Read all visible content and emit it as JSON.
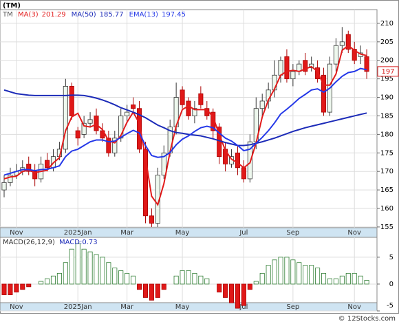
{
  "chart_data": [
    {
      "type": "candlestick",
      "title": "(TM)",
      "ticker": "TM",
      "categories": [
        null,
        null,
        "Nov",
        null,
        null,
        null,
        null,
        null,
        null,
        null,
        null,
        null,
        "2025Jan",
        null,
        null,
        null,
        null,
        null,
        null,
        null,
        "Mar",
        null,
        null,
        null,
        null,
        null,
        null,
        null,
        null,
        "May",
        null,
        null,
        null,
        null,
        null,
        null,
        null,
        null,
        null,
        "Jul",
        null,
        null,
        null,
        null,
        null,
        null,
        null,
        "Sep",
        null,
        null,
        null,
        null,
        null,
        null,
        null,
        null,
        null,
        "Nov",
        null,
        null
      ],
      "open": [
        165,
        167,
        169,
        170,
        172,
        170,
        168,
        173,
        171,
        174,
        176,
        193,
        181,
        180,
        183,
        185,
        181,
        179,
        175,
        179,
        185,
        188,
        187,
        176,
        158,
        156,
        169,
        175,
        182,
        192,
        189,
        185,
        191,
        187,
        186,
        182,
        176,
        172,
        175,
        171,
        168,
        178,
        187,
        189,
        192,
        196,
        201,
        195,
        197,
        200,
        198,
        198,
        196,
        186,
        199,
        204,
        207,
        203,
        201,
        201
      ],
      "high": [
        169,
        171,
        172,
        173,
        174,
        172,
        174,
        175,
        176,
        178,
        195,
        194,
        182,
        185,
        186,
        187,
        183,
        181,
        181,
        187,
        188,
        190,
        189,
        178,
        160,
        171,
        177,
        184,
        194,
        193,
        190,
        189,
        193,
        189,
        187,
        183,
        178,
        176,
        177,
        173,
        180,
        190,
        191,
        194,
        200,
        201,
        203,
        199,
        200,
        202,
        201,
        200,
        198,
        201,
        206,
        209,
        208,
        205,
        204,
        203
      ],
      "low": [
        163,
        166,
        168,
        169,
        169,
        166,
        167,
        170,
        170,
        173,
        175,
        184,
        177,
        179,
        182,
        180,
        178,
        174,
        174,
        178,
        183,
        186,
        175,
        156,
        155,
        155,
        168,
        174,
        180,
        187,
        184,
        183,
        187,
        184,
        179,
        172,
        170,
        171,
        169,
        167,
        167,
        176,
        185,
        187,
        190,
        194,
        194,
        193,
        196,
        196,
        197,
        194,
        185,
        185,
        197,
        202,
        202,
        199,
        199,
        195
      ],
      "close": [
        167,
        169,
        170,
        171,
        170,
        168,
        172,
        171,
        174,
        176,
        193,
        185,
        179,
        183,
        184,
        181,
        179,
        175,
        179,
        185,
        186,
        187,
        176,
        158,
        156,
        169,
        175,
        182,
        190,
        188,
        185,
        187,
        188,
        185,
        181,
        174,
        172,
        174,
        171,
        168,
        178,
        187,
        189,
        192,
        196,
        200,
        195,
        197,
        199,
        197,
        199,
        195,
        186,
        199,
        204,
        205,
        203,
        200,
        202,
        197
      ],
      "series": [
        {
          "name": "MA(3)",
          "color": "#e21b1b",
          "legend_value": 201.29,
          "values": [
            168,
            168.5,
            168.7,
            170,
            170.3,
            169.7,
            170,
            170.3,
            172.3,
            173.7,
            181,
            184.7,
            185.7,
            182.3,
            182,
            182.7,
            181.3,
            178.3,
            177.7,
            179.7,
            183.3,
            186,
            183,
            173.7,
            163.3,
            161,
            166.7,
            175.3,
            182.3,
            186.7,
            187.7,
            186.7,
            186.7,
            186.7,
            184.7,
            180,
            175.7,
            173.3,
            172.3,
            171,
            172.3,
            177.7,
            184.7,
            189.3,
            192.3,
            196,
            197,
            197.3,
            197,
            197.7,
            198.3,
            197,
            193.3,
            193.3,
            196.3,
            202.7,
            204,
            202.7,
            201.7,
            201.29
          ]
        },
        {
          "name": "MA(50)",
          "color": "#1c2bb8",
          "legend_value": 185.77,
          "values": [
            192,
            191.5,
            191,
            190.8,
            190.6,
            190.5,
            190.5,
            190.5,
            190.5,
            190.5,
            190.5,
            190.6,
            190.6,
            190.5,
            190.2,
            189.8,
            189.3,
            188.7,
            188,
            187.2,
            186.6,
            186,
            185.3,
            184.5,
            183.5,
            182.5,
            181.8,
            181,
            180.5,
            180.3,
            180,
            179.8,
            179.6,
            179.2,
            178.8,
            178.3,
            177.8,
            177.4,
            177,
            177,
            177.2,
            177.6,
            178,
            178.5,
            179,
            179.6,
            180.2,
            180.8,
            181.3,
            181.8,
            182.2,
            182.6,
            183,
            183.4,
            183.8,
            184.2,
            184.6,
            185,
            185.4,
            185.77
          ]
        },
        {
          "name": "EMA(13)",
          "color": "#2438e8",
          "legend_value": 197.45,
          "values": [
            169,
            169.5,
            170,
            170.5,
            170.5,
            170.2,
            170.5,
            170.6,
            171,
            171.5,
            174,
            175.5,
            176,
            177,
            178,
            178.5,
            178.5,
            178,
            178.2,
            179.2,
            180.2,
            181.1,
            180.4,
            177,
            174.3,
            173.8,
            174,
            175.1,
            177.2,
            178.7,
            179.6,
            180.8,
            181.8,
            182.2,
            181.8,
            180.4,
            179,
            178.2,
            177,
            175.6,
            176,
            177.6,
            179.2,
            181,
            183.1,
            185.5,
            186.8,
            188.2,
            189.7,
            190.8,
            192,
            192.3,
            191.4,
            192.5,
            194.2,
            195.7,
            196.7,
            197,
            197.8,
            197.45
          ]
        }
      ],
      "last_price": 197,
      "ylim": [
        154.8,
        213.7
      ],
      "yticks": [
        155,
        160,
        165,
        170,
        175,
        180,
        185,
        190,
        195,
        200,
        205,
        210
      ],
      "grid": true
    },
    {
      "type": "bar",
      "title": "MACD(26,12,9)",
      "annotation": "MACD:0.73",
      "values": [
        -2,
        -2,
        -1.5,
        -1,
        -0.5,
        0,
        0.5,
        1,
        1.5,
        2,
        4,
        6.5,
        7.5,
        6.5,
        6,
        5.5,
        5,
        4,
        3,
        2.5,
        2,
        1.5,
        -1,
        -2.5,
        -3,
        -2.5,
        -1,
        0,
        1.5,
        2.5,
        2.5,
        2,
        1.5,
        1,
        0,
        -1.5,
        -2.5,
        -3.5,
        -4.5,
        -4,
        -1,
        0.5,
        2,
        3.5,
        4.5,
        5,
        5,
        4.5,
        4,
        3.5,
        3.5,
        3,
        2,
        1,
        1,
        1.5,
        2,
        2,
        1.5,
        0.7
      ],
      "ylim": [
        -5,
        8.7
      ],
      "yticks": [
        -5,
        0,
        5
      ],
      "grid": true
    }
  ],
  "footer": "© 12Stocks.com"
}
